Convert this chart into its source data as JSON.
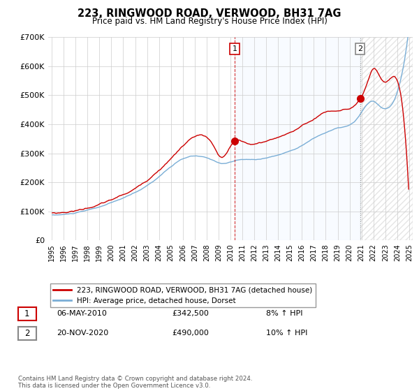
{
  "title": "223, RINGWOOD ROAD, VERWOOD, BH31 7AG",
  "subtitle": "Price paid vs. HM Land Registry's House Price Index (HPI)",
  "legend_line1": "223, RINGWOOD ROAD, VERWOOD, BH31 7AG (detached house)",
  "legend_line2": "HPI: Average price, detached house, Dorset",
  "annotation1_label": "1",
  "annotation1_date": "06-MAY-2010",
  "annotation1_price": "£342,500",
  "annotation1_hpi": "8% ↑ HPI",
  "annotation2_label": "2",
  "annotation2_date": "20-NOV-2020",
  "annotation2_price": "£490,000",
  "annotation2_hpi": "10% ↑ HPI",
  "copyright": "Contains HM Land Registry data © Crown copyright and database right 2024.\nThis data is licensed under the Open Government Licence v3.0.",
  "property_color": "#cc0000",
  "hpi_color": "#7aaed6",
  "vline1_color": "#cc0000",
  "vline2_color": "#888888",
  "shade_color": "#ddeeff",
  "background_color": "#ffffff",
  "grid_color": "#cccccc",
  "ylim": [
    0,
    700000
  ],
  "yticks": [
    0,
    100000,
    200000,
    300000,
    400000,
    500000,
    600000,
    700000
  ],
  "ytick_labels": [
    "£0",
    "£100K",
    "£200K",
    "£300K",
    "£400K",
    "£500K",
    "£600K",
    "£700K"
  ],
  "sale1_x": 2010.35,
  "sale1_y": 342500,
  "sale2_x": 2020.88,
  "sale2_y": 490000,
  "xlim_left": 1994.7,
  "xlim_right": 2025.3
}
